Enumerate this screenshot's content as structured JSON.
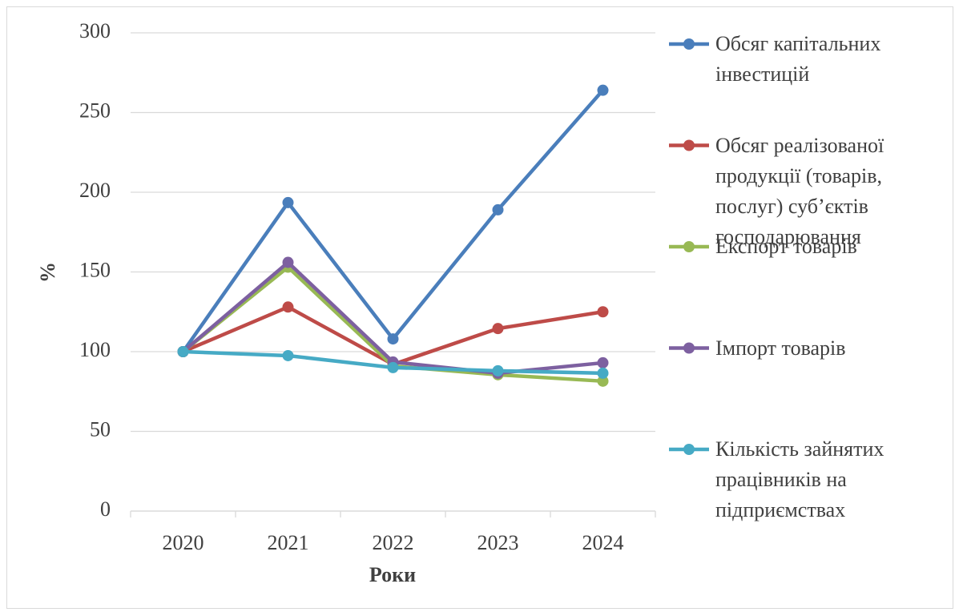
{
  "chart_data": {
    "type": "line",
    "x_label": "Роки",
    "y_label": "%",
    "categories": [
      "2020",
      "2021",
      "2022",
      "2023",
      "2024"
    ],
    "series": [
      {
        "name": "Обсяг капітальних інвестицій",
        "color": "#4a7ebb",
        "values": [
          100,
          193.5,
          108,
          189,
          264
        ]
      },
      {
        "name": "Обсяг реалізованої продукції (товарів, послуг) суб’єктів господарювання",
        "color": "#be4b48",
        "values": [
          100,
          128,
          92,
          114.5,
          125
        ]
      },
      {
        "name": "Експорт товарів",
        "color": "#98b954",
        "values": [
          100,
          153,
          91,
          85.5,
          81.5
        ]
      },
      {
        "name": "Імпорт товарів",
        "color": "#7d60a0",
        "values": [
          100,
          156,
          93.5,
          86.5,
          93
        ]
      },
      {
        "name": "Кількість зайнятих працівників на підприємствах",
        "color": "#46aac5",
        "values": [
          100,
          97.5,
          90,
          88,
          86.5
        ]
      }
    ],
    "ylim": [
      0,
      300
    ],
    "yticks": [
      0,
      50,
      100,
      150,
      200,
      250,
      300
    ],
    "grid": true
  }
}
